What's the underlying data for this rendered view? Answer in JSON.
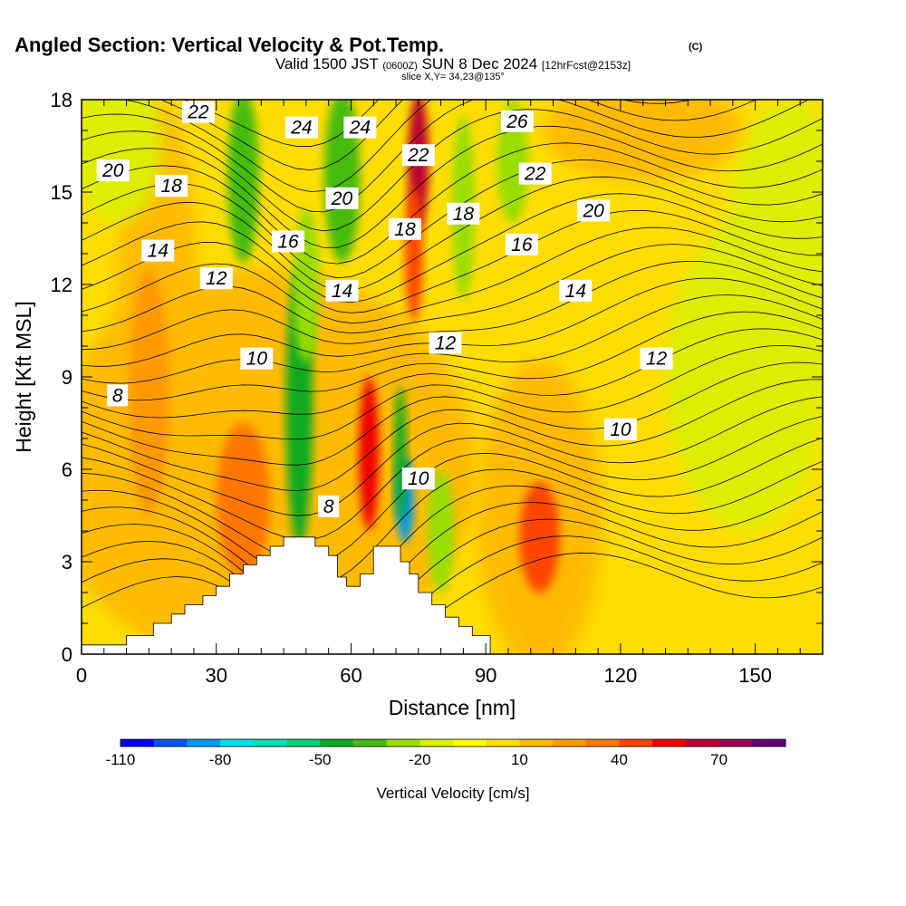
{
  "chart_data": {
    "type": "contour",
    "title": "Angled Section: Vertical Velocity & Pot.Temp.",
    "title_mark": "(C)",
    "subtitle": {
      "part1": "Valid 1500 JST",
      "part2": "(0600Z)",
      "part3": "SUN 8 Dec 2024",
      "part4": "[12hrFcst@2153z]"
    },
    "slice_text": "slice X,Y= 34,23@135°",
    "xlabel": "Distance [nm]",
    "ylabel": "Height [Kft MSL]",
    "xlim": [
      0,
      165
    ],
    "ylim": [
      0,
      18
    ],
    "xticks": [
      "0",
      "30",
      "60",
      "90",
      "120",
      "150"
    ],
    "yticks": [
      "0",
      "3",
      "6",
      "9",
      "12",
      "15",
      "18"
    ],
    "colorbar": {
      "label": "Vertical Velocity [cm/s]",
      "tick_labels": [
        "-110",
        "-80",
        "-50",
        "-20",
        "10",
        "40",
        "70"
      ],
      "levels": [
        -110,
        -100,
        -90,
        -80,
        -70,
        -60,
        -50,
        -40,
        -30,
        -20,
        -10,
        0,
        10,
        20,
        30,
        40,
        50,
        60,
        70,
        80,
        90
      ],
      "colors": [
        "#0000ee",
        "#0055ee",
        "#0099ee",
        "#00ddee",
        "#00ddbb",
        "#00cc77",
        "#11aa22",
        "#44bb11",
        "#99dd00",
        "#ddee00",
        "#ffff00",
        "#ffdd00",
        "#ffbb00",
        "#ff9900",
        "#ff7700",
        "#ff4400",
        "#ee0000",
        "#bb0033",
        "#990055",
        "#660077"
      ]
    },
    "updraft_cores_cm_s": [
      {
        "distance": 15,
        "height": 8.0,
        "w": 35
      },
      {
        "distance": 36,
        "height": 5.0,
        "w": 40
      },
      {
        "distance": 64,
        "height": 6.5,
        "w": 60
      },
      {
        "distance": 74,
        "height": 16.0,
        "w": 70
      },
      {
        "distance": 102,
        "height": 3.8,
        "w": 45
      }
    ],
    "downdraft_cores_cm_s": [
      {
        "distance": 49,
        "height": 8.0,
        "w": -55
      },
      {
        "distance": 72,
        "height": 5.0,
        "w": -90
      },
      {
        "distance": 36,
        "height": 15.0,
        "w": -40
      },
      {
        "distance": 58,
        "height": 15.0,
        "w": -35
      }
    ],
    "isentropes": {
      "units": "C",
      "labels": [
        {
          "text": "8",
          "distance": 8,
          "height": 8.4
        },
        {
          "text": "10",
          "distance": 39,
          "height": 9.6
        },
        {
          "text": "12",
          "distance": 30,
          "height": 12.2
        },
        {
          "text": "14",
          "distance": 17,
          "height": 13.1
        },
        {
          "text": "18",
          "distance": 20,
          "height": 15.2
        },
        {
          "text": "20",
          "distance": 7,
          "height": 15.7
        },
        {
          "text": "22",
          "distance": 26,
          "height": 17.6
        },
        {
          "text": "24",
          "distance": 49,
          "height": 17.1
        },
        {
          "text": "24",
          "distance": 62,
          "height": 17.1
        },
        {
          "text": "20",
          "distance": 58,
          "height": 14.8
        },
        {
          "text": "16",
          "distance": 46,
          "height": 13.4
        },
        {
          "text": "18",
          "distance": 72,
          "height": 13.8
        },
        {
          "text": "14",
          "distance": 58,
          "height": 11.8
        },
        {
          "text": "8",
          "distance": 55,
          "height": 4.8
        },
        {
          "text": "10",
          "distance": 75,
          "height": 5.7
        },
        {
          "text": "22",
          "distance": 75,
          "height": 16.2
        },
        {
          "text": "18",
          "distance": 85,
          "height": 14.3
        },
        {
          "text": "12",
          "distance": 81,
          "height": 10.1
        },
        {
          "text": "26",
          "distance": 97,
          "height": 17.3
        },
        {
          "text": "22",
          "distance": 101,
          "height": 15.6
        },
        {
          "text": "16",
          "distance": 98,
          "height": 13.3
        },
        {
          "text": "20",
          "distance": 114,
          "height": 14.4
        },
        {
          "text": "14",
          "distance": 110,
          "height": 11.8
        },
        {
          "text": "10",
          "distance": 120,
          "height": 7.3
        },
        {
          "text": "12",
          "distance": 128,
          "height": 9.6
        }
      ]
    },
    "terrain_kft": [
      [
        0,
        0.3
      ],
      [
        10,
        0.3
      ],
      [
        10,
        0.6
      ],
      [
        16,
        0.6
      ],
      [
        16,
        1.0
      ],
      [
        20,
        1.0
      ],
      [
        20,
        1.3
      ],
      [
        23,
        1.3
      ],
      [
        23,
        1.6
      ],
      [
        27,
        1.6
      ],
      [
        27,
        1.9
      ],
      [
        30,
        1.9
      ],
      [
        30,
        2.2
      ],
      [
        33,
        2.2
      ],
      [
        33,
        2.6
      ],
      [
        36,
        2.6
      ],
      [
        36,
        2.9
      ],
      [
        39,
        2.9
      ],
      [
        39,
        3.2
      ],
      [
        42,
        3.2
      ],
      [
        42,
        3.5
      ],
      [
        45,
        3.5
      ],
      [
        45,
        3.8
      ],
      [
        52,
        3.8
      ],
      [
        52,
        3.5
      ],
      [
        55,
        3.5
      ],
      [
        55,
        3.2
      ],
      [
        57,
        3.2
      ],
      [
        57,
        2.5
      ],
      [
        59,
        2.5
      ],
      [
        59,
        2.2
      ],
      [
        62,
        2.2
      ],
      [
        62,
        2.6
      ],
      [
        65,
        2.6
      ],
      [
        65,
        3.5
      ],
      [
        71,
        3.5
      ],
      [
        71,
        3.0
      ],
      [
        73,
        3.0
      ],
      [
        73,
        2.6
      ],
      [
        75,
        2.6
      ],
      [
        75,
        2.0
      ],
      [
        78,
        2.0
      ],
      [
        78,
        1.6
      ],
      [
        81,
        1.6
      ],
      [
        81,
        1.2
      ],
      [
        84,
        1.2
      ],
      [
        84,
        0.9
      ],
      [
        87,
        0.9
      ],
      [
        87,
        0.6
      ],
      [
        91,
        0.6
      ]
    ]
  }
}
